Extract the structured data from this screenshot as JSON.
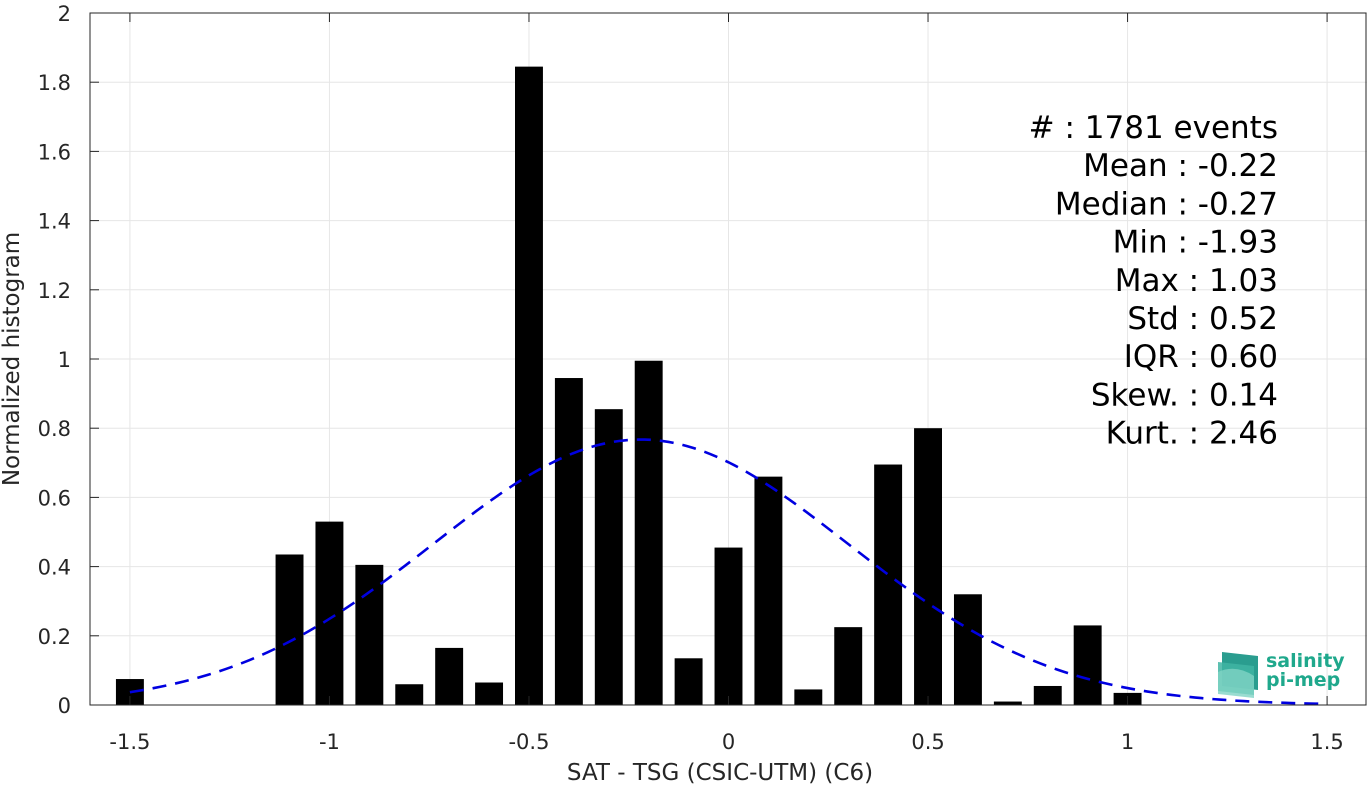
{
  "chart_data": {
    "type": "bar",
    "xlabel": "SAT - TSG (CSIC-UTM) (C6)",
    "ylabel": "Normalized histogram",
    "xlim": [
      -1.6,
      1.6
    ],
    "ylim": [
      0,
      2
    ],
    "grid": true,
    "x_ticks": [
      -1.5,
      -1,
      -0.5,
      0,
      0.5,
      1,
      1.5
    ],
    "x_tick_labels": [
      "-1.5",
      "-1",
      "-0.5",
      "0",
      "0.5",
      "1",
      "1.5"
    ],
    "y_ticks": [
      0,
      0.2,
      0.4,
      0.6,
      0.8,
      1,
      1.2,
      1.4,
      1.6,
      1.8,
      2
    ],
    "y_tick_labels": [
      "0",
      "0.2",
      "0.4",
      "0.6",
      "0.8",
      "1",
      "1.2",
      "1.4",
      "1.6",
      "1.8",
      "2"
    ],
    "bar_width": 0.07,
    "bar_color": "#000000",
    "bars": [
      {
        "x": -1.5,
        "y": 0.075
      },
      {
        "x": -1.1,
        "y": 0.435
      },
      {
        "x": -1.0,
        "y": 0.53
      },
      {
        "x": -0.9,
        "y": 0.405
      },
      {
        "x": -0.8,
        "y": 0.06
      },
      {
        "x": -0.7,
        "y": 0.165
      },
      {
        "x": -0.6,
        "y": 0.065
      },
      {
        "x": -0.5,
        "y": 1.845
      },
      {
        "x": -0.4,
        "y": 0.945
      },
      {
        "x": -0.3,
        "y": 0.855
      },
      {
        "x": -0.2,
        "y": 0.995
      },
      {
        "x": -0.1,
        "y": 0.135
      },
      {
        "x": 0.0,
        "y": 0.455
      },
      {
        "x": 0.1,
        "y": 0.66
      },
      {
        "x": 0.2,
        "y": 0.045
      },
      {
        "x": 0.3,
        "y": 0.225
      },
      {
        "x": 0.4,
        "y": 0.695
      },
      {
        "x": 0.5,
        "y": 0.8
      },
      {
        "x": 0.6,
        "y": 0.32
      },
      {
        "x": 0.7,
        "y": 0.01
      },
      {
        "x": 0.8,
        "y": 0.055
      },
      {
        "x": 0.9,
        "y": 0.23
      },
      {
        "x": 1.0,
        "y": 0.035
      }
    ],
    "fit_curve": {
      "style": "dashed",
      "color": "#0000e0",
      "mean": -0.22,
      "std": 0.52,
      "x_range": [
        -1.5,
        1.5
      ]
    },
    "stats": [
      "#  : 1781 events",
      "Mean : -0.22",
      "Median : -0.27",
      "Min : -1.93",
      "Max : 1.03",
      "Std : 0.52",
      "IQR : 0.60",
      "Skew. : 0.14",
      "Kurt. : 2.46"
    ]
  },
  "logo": {
    "line1": "salinity",
    "line2": "pi-mep",
    "color": "#1fa88c"
  }
}
